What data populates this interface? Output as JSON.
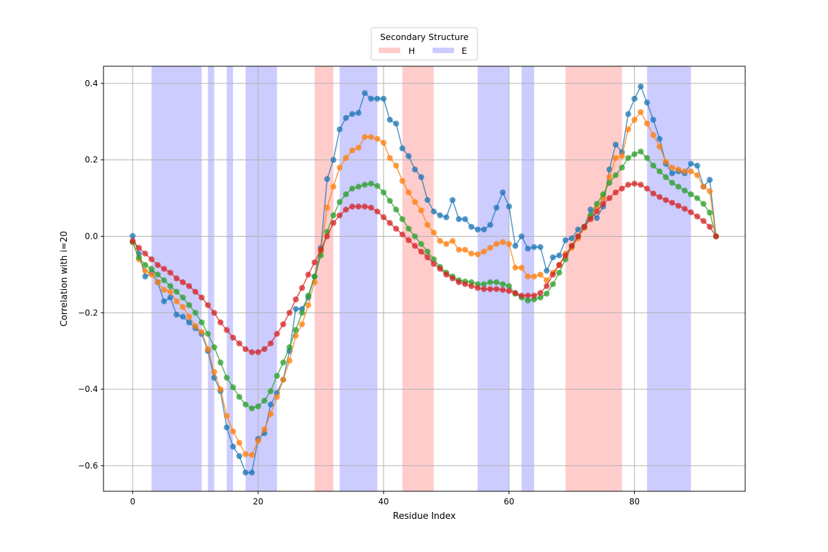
{
  "chart_data": {
    "type": "line",
    "xlabel": "Residue Index",
    "ylabel": "Correlation with i=20",
    "xlim": [
      -4.65,
      97.65
    ],
    "ylim": [
      -0.667,
      0.445
    ],
    "x_ticks": [
      0,
      20,
      40,
      60,
      80
    ],
    "y_ticks": [
      -0.6,
      -0.4,
      -0.2,
      0.0,
      0.2,
      0.4
    ],
    "grid": true,
    "legend": {
      "title": "Secondary Structure",
      "placement": "upper center, above plot",
      "entries": [
        {
          "label": "H",
          "color": "#ff9999"
        },
        {
          "label": "E",
          "color": "#9999ff"
        }
      ]
    },
    "secondary_structure_regions": [
      {
        "type": "E",
        "start": 3,
        "end": 11
      },
      {
        "type": "E",
        "start": 12,
        "end": 13
      },
      {
        "type": "E",
        "start": 15,
        "end": 16
      },
      {
        "type": "E",
        "start": 18,
        "end": 23
      },
      {
        "type": "H",
        "start": 29,
        "end": 32
      },
      {
        "type": "E",
        "start": 33,
        "end": 39
      },
      {
        "type": "H",
        "start": 43,
        "end": 48
      },
      {
        "type": "E",
        "start": 55,
        "end": 60
      },
      {
        "type": "E",
        "start": 62,
        "end": 64
      },
      {
        "type": "H",
        "start": 69,
        "end": 78
      },
      {
        "type": "E",
        "start": 82,
        "end": 89
      }
    ],
    "series": [
      {
        "color": "#1f77b4",
        "values": [
          0.001,
          -0.045,
          -0.105,
          -0.095,
          -0.12,
          -0.17,
          -0.16,
          -0.205,
          -0.21,
          -0.225,
          -0.24,
          -0.255,
          -0.3,
          -0.37,
          -0.405,
          -0.5,
          -0.55,
          -0.575,
          -0.618,
          -0.618,
          -0.53,
          -0.515,
          -0.44,
          -0.41,
          -0.375,
          -0.3,
          -0.19,
          -0.19,
          -0.16,
          -0.105,
          -0.03,
          0.15,
          0.2,
          0.28,
          0.31,
          0.32,
          0.323,
          0.375,
          0.36,
          0.36,
          0.36,
          0.305,
          0.295,
          0.23,
          0.21,
          0.175,
          0.155,
          0.095,
          0.065,
          0.055,
          0.05,
          0.095,
          0.045,
          0.045,
          0.025,
          0.018,
          0.018,
          0.03,
          0.075,
          0.115,
          0.078,
          -0.025,
          0.0,
          -0.032,
          -0.028,
          -0.028,
          -0.09,
          -0.055,
          -0.05,
          -0.01,
          -0.005,
          0.018,
          0.025,
          0.07,
          0.048,
          0.078,
          0.175,
          0.24,
          0.22,
          0.32,
          0.36,
          0.392,
          0.35,
          0.305,
          0.255,
          0.19,
          0.165,
          0.17,
          0.165,
          0.19,
          0.185,
          0.13,
          0.148,
          0.0
        ]
      },
      {
        "color": "#ff7f0e",
        "values": [
          -0.015,
          -0.06,
          -0.09,
          -0.1,
          -0.12,
          -0.14,
          -0.145,
          -0.17,
          -0.185,
          -0.21,
          -0.235,
          -0.25,
          -0.295,
          -0.355,
          -0.4,
          -0.47,
          -0.51,
          -0.54,
          -0.57,
          -0.572,
          -0.535,
          -0.505,
          -0.465,
          -0.42,
          -0.375,
          -0.325,
          -0.26,
          -0.23,
          -0.18,
          -0.12,
          -0.04,
          0.075,
          0.13,
          0.18,
          0.205,
          0.225,
          0.232,
          0.26,
          0.26,
          0.255,
          0.245,
          0.205,
          0.185,
          0.145,
          0.115,
          0.09,
          0.068,
          0.03,
          0.01,
          -0.012,
          -0.02,
          -0.012,
          -0.035,
          -0.035,
          -0.045,
          -0.047,
          -0.04,
          -0.03,
          -0.02,
          -0.015,
          -0.02,
          -0.082,
          -0.082,
          -0.105,
          -0.105,
          -0.1,
          -0.115,
          -0.095,
          -0.075,
          -0.045,
          -0.03,
          -0.005,
          0.022,
          0.05,
          0.075,
          0.1,
          0.155,
          0.205,
          0.21,
          0.28,
          0.305,
          0.325,
          0.295,
          0.265,
          0.235,
          0.195,
          0.18,
          0.175,
          0.17,
          0.17,
          0.16,
          0.13,
          0.118,
          0.0
        ]
      },
      {
        "color": "#2ca02c",
        "values": [
          -0.015,
          -0.055,
          -0.075,
          -0.085,
          -0.1,
          -0.115,
          -0.13,
          -0.145,
          -0.16,
          -0.18,
          -0.2,
          -0.225,
          -0.255,
          -0.29,
          -0.33,
          -0.37,
          -0.395,
          -0.42,
          -0.44,
          -0.45,
          -0.445,
          -0.43,
          -0.405,
          -0.365,
          -0.33,
          -0.29,
          -0.245,
          -0.2,
          -0.155,
          -0.105,
          -0.05,
          0.012,
          0.055,
          0.09,
          0.11,
          0.125,
          0.13,
          0.135,
          0.138,
          0.132,
          0.115,
          0.093,
          0.07,
          0.045,
          0.02,
          0.0,
          -0.02,
          -0.04,
          -0.06,
          -0.08,
          -0.095,
          -0.105,
          -0.115,
          -0.118,
          -0.12,
          -0.125,
          -0.125,
          -0.12,
          -0.12,
          -0.125,
          -0.13,
          -0.15,
          -0.16,
          -0.168,
          -0.165,
          -0.16,
          -0.15,
          -0.125,
          -0.095,
          -0.06,
          -0.025,
          0.0,
          0.025,
          0.055,
          0.085,
          0.11,
          0.14,
          0.16,
          0.18,
          0.205,
          0.215,
          0.222,
          0.205,
          0.185,
          0.17,
          0.155,
          0.14,
          0.13,
          0.12,
          0.11,
          0.1,
          0.085,
          0.062,
          0.0
        ]
      },
      {
        "color": "#d62728",
        "values": [
          -0.012,
          -0.03,
          -0.045,
          -0.06,
          -0.075,
          -0.085,
          -0.095,
          -0.11,
          -0.12,
          -0.13,
          -0.145,
          -0.16,
          -0.18,
          -0.2,
          -0.225,
          -0.245,
          -0.265,
          -0.28,
          -0.295,
          -0.303,
          -0.303,
          -0.295,
          -0.28,
          -0.255,
          -0.23,
          -0.2,
          -0.165,
          -0.135,
          -0.1,
          -0.068,
          -0.035,
          0.0,
          0.035,
          0.055,
          0.07,
          0.078,
          0.078,
          0.078,
          0.075,
          0.065,
          0.05,
          0.035,
          0.02,
          0.005,
          -0.01,
          -0.025,
          -0.04,
          -0.055,
          -0.072,
          -0.085,
          -0.1,
          -0.11,
          -0.12,
          -0.125,
          -0.13,
          -0.135,
          -0.138,
          -0.138,
          -0.138,
          -0.14,
          -0.143,
          -0.148,
          -0.155,
          -0.155,
          -0.155,
          -0.148,
          -0.13,
          -0.1,
          -0.075,
          -0.05,
          -0.025,
          0.0,
          0.025,
          0.045,
          0.065,
          0.085,
          0.1,
          0.115,
          0.125,
          0.135,
          0.138,
          0.135,
          0.125,
          0.112,
          0.103,
          0.095,
          0.088,
          0.08,
          0.072,
          0.063,
          0.052,
          0.04,
          0.025,
          0.0
        ]
      }
    ]
  }
}
